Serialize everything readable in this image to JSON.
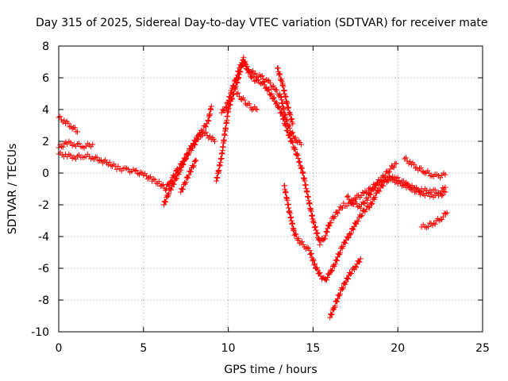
{
  "chart_data": {
    "type": "scatter",
    "title": "Day 315 of 2025, Sidereal Day-to-day VTEC variation (SDTVAR) for receiver mate",
    "xlabel": "GPS time / hours",
    "ylabel": "SDTVAR / TECUs",
    "xlim": [
      0,
      25
    ],
    "ylim": [
      -10,
      8
    ],
    "xticks": [
      0,
      5,
      10,
      15,
      20,
      25
    ],
    "yticks": [
      -10,
      -8,
      -6,
      -4,
      -2,
      0,
      2,
      4,
      6,
      8
    ],
    "grid": true,
    "marker": "plus",
    "color": "#ff0000",
    "series": [
      {
        "points": [
          [
            0.0,
            3.5
          ],
          [
            0.4,
            3.2
          ],
          [
            0.8,
            2.9
          ],
          [
            1.1,
            2.6
          ]
        ]
      },
      {
        "points": [
          [
            0.0,
            1.6
          ],
          [
            0.5,
            1.9
          ],
          [
            1.0,
            1.8
          ],
          [
            1.5,
            1.7
          ],
          [
            2.0,
            1.8
          ]
        ]
      },
      {
        "points": [
          [
            0.0,
            1.2
          ],
          [
            0.5,
            1.1
          ],
          [
            1.0,
            1.0
          ],
          [
            1.5,
            1.1
          ],
          [
            2.0,
            1.0
          ],
          [
            2.5,
            0.8
          ],
          [
            3.0,
            0.6
          ],
          [
            3.5,
            0.3
          ],
          [
            4.0,
            0.2
          ],
          [
            4.5,
            0.1
          ],
          [
            5.0,
            -0.1
          ],
          [
            5.5,
            -0.4
          ],
          [
            6.0,
            -0.7
          ],
          [
            6.3,
            -1.0
          ],
          [
            6.6,
            -0.5
          ],
          [
            7.0,
            0.2
          ],
          [
            7.4,
            0.8
          ],
          [
            7.8,
            1.6
          ],
          [
            8.2,
            2.3
          ],
          [
            8.6,
            2.5
          ],
          [
            9.0,
            2.2
          ],
          [
            9.2,
            2.0
          ]
        ]
      },
      {
        "points": [
          [
            6.2,
            -2.0
          ],
          [
            6.5,
            -1.2
          ],
          [
            6.8,
            -0.6
          ],
          [
            7.2,
            0.3
          ],
          [
            7.6,
            1.2
          ],
          [
            8.0,
            1.8
          ],
          [
            8.4,
            2.6
          ],
          [
            8.8,
            3.2
          ],
          [
            9.0,
            4.2
          ]
        ]
      },
      {
        "points": [
          [
            7.2,
            -1.2
          ],
          [
            7.5,
            -0.5
          ],
          [
            7.8,
            0.2
          ],
          [
            8.1,
            0.8
          ]
        ]
      },
      {
        "points": [
          [
            9.3,
            -0.5
          ],
          [
            9.6,
            1.0
          ],
          [
            9.8,
            2.5
          ],
          [
            10.0,
            4.0
          ],
          [
            10.3,
            5.0
          ],
          [
            10.6,
            6.0
          ],
          [
            10.9,
            7.2
          ],
          [
            11.1,
            6.6
          ],
          [
            11.4,
            6.0
          ],
          [
            11.7,
            5.8
          ],
          [
            12.0,
            5.7
          ],
          [
            12.3,
            5.3
          ],
          [
            12.6,
            4.8
          ],
          [
            12.9,
            4.3
          ],
          [
            13.2,
            3.6
          ],
          [
            13.5,
            2.6
          ],
          [
            13.8,
            1.8
          ],
          [
            14.1,
            1.0
          ],
          [
            14.4,
            0.0
          ],
          [
            14.7,
            -1.5
          ],
          [
            15.0,
            -3.0
          ],
          [
            15.4,
            -4.4
          ],
          [
            15.7,
            -4.0
          ],
          [
            16.0,
            -3.1
          ],
          [
            16.4,
            -2.5
          ],
          [
            16.8,
            -2.0
          ],
          [
            17.2,
            -2.0
          ],
          [
            17.6,
            -1.5
          ],
          [
            18.0,
            -1.3
          ],
          [
            18.5,
            -0.9
          ],
          [
            19.0,
            -0.4
          ],
          [
            19.5,
            0.2
          ],
          [
            19.9,
            0.6
          ]
        ]
      },
      {
        "points": [
          [
            9.6,
            3.8
          ],
          [
            9.9,
            4.2
          ],
          [
            10.2,
            5.2
          ],
          [
            10.5,
            6.1
          ],
          [
            10.8,
            7.0
          ],
          [
            11.2,
            6.5
          ],
          [
            11.6,
            6.2
          ],
          [
            12.0,
            6.0
          ],
          [
            12.4,
            5.7
          ],
          [
            12.8,
            5.2
          ],
          [
            13.1,
            4.8
          ],
          [
            13.4,
            3.4
          ],
          [
            13.7,
            2.6
          ],
          [
            14.0,
            2.1
          ],
          [
            14.3,
            1.8
          ]
        ]
      },
      {
        "points": [
          [
            10.5,
            5.0
          ],
          [
            10.8,
            4.7
          ],
          [
            11.1,
            4.4
          ],
          [
            11.4,
            4.1
          ],
          [
            11.7,
            4.0
          ]
        ]
      },
      {
        "points": [
          [
            12.9,
            6.6
          ],
          [
            13.2,
            5.6
          ],
          [
            13.5,
            4.2
          ],
          [
            13.8,
            3.1
          ]
        ]
      },
      {
        "points": [
          [
            13.3,
            -0.8
          ],
          [
            13.6,
            -2.4
          ],
          [
            13.9,
            -3.8
          ],
          [
            14.2,
            -4.3
          ],
          [
            14.5,
            -4.6
          ],
          [
            14.8,
            -4.9
          ],
          [
            15.1,
            -5.8
          ],
          [
            15.4,
            -6.4
          ],
          [
            15.7,
            -6.8
          ],
          [
            16.0,
            -6.3
          ],
          [
            16.3,
            -5.7
          ],
          [
            16.6,
            -4.9
          ],
          [
            16.9,
            -4.3
          ],
          [
            17.2,
            -3.8
          ],
          [
            17.6,
            -3.0
          ],
          [
            18.0,
            -2.4
          ],
          [
            18.4,
            -2.0
          ],
          [
            18.8,
            -1.2
          ],
          [
            19.2,
            -0.6
          ],
          [
            19.6,
            -0.3
          ],
          [
            20.0,
            -0.6
          ],
          [
            20.5,
            -0.8
          ],
          [
            21.0,
            -1.1
          ],
          [
            21.5,
            -1.3
          ],
          [
            22.0,
            -1.4
          ],
          [
            22.5,
            -1.4
          ],
          [
            22.8,
            -1.2
          ]
        ]
      },
      {
        "points": [
          [
            16.0,
            -9.1
          ],
          [
            16.3,
            -8.3
          ],
          [
            16.6,
            -7.5
          ],
          [
            16.9,
            -6.9
          ],
          [
            17.2,
            -6.3
          ],
          [
            17.5,
            -5.9
          ],
          [
            17.8,
            -5.4
          ]
        ]
      },
      {
        "points": [
          [
            17.0,
            -1.5
          ],
          [
            17.4,
            -1.9
          ],
          [
            17.8,
            -2.1
          ],
          [
            18.2,
            -1.6
          ],
          [
            18.6,
            -0.9
          ],
          [
            19.0,
            -0.5
          ],
          [
            19.5,
            -0.3
          ],
          [
            20.0,
            -0.4
          ],
          [
            20.5,
            -0.7
          ],
          [
            21.0,
            -1.0
          ],
          [
            21.5,
            -1.1
          ],
          [
            22.0,
            -1.1
          ],
          [
            22.5,
            -1.2
          ],
          [
            22.8,
            -0.9
          ]
        ]
      },
      {
        "points": [
          [
            20.4,
            0.9
          ],
          [
            20.8,
            0.6
          ],
          [
            21.2,
            0.3
          ],
          [
            21.6,
            0.1
          ],
          [
            22.0,
            -0.1
          ],
          [
            22.4,
            -0.2
          ],
          [
            22.8,
            -0.1
          ]
        ]
      },
      {
        "points": [
          [
            21.4,
            -3.4
          ],
          [
            21.8,
            -3.3
          ],
          [
            22.2,
            -3.1
          ],
          [
            22.6,
            -2.8
          ],
          [
            22.9,
            -2.5
          ]
        ]
      }
    ]
  }
}
